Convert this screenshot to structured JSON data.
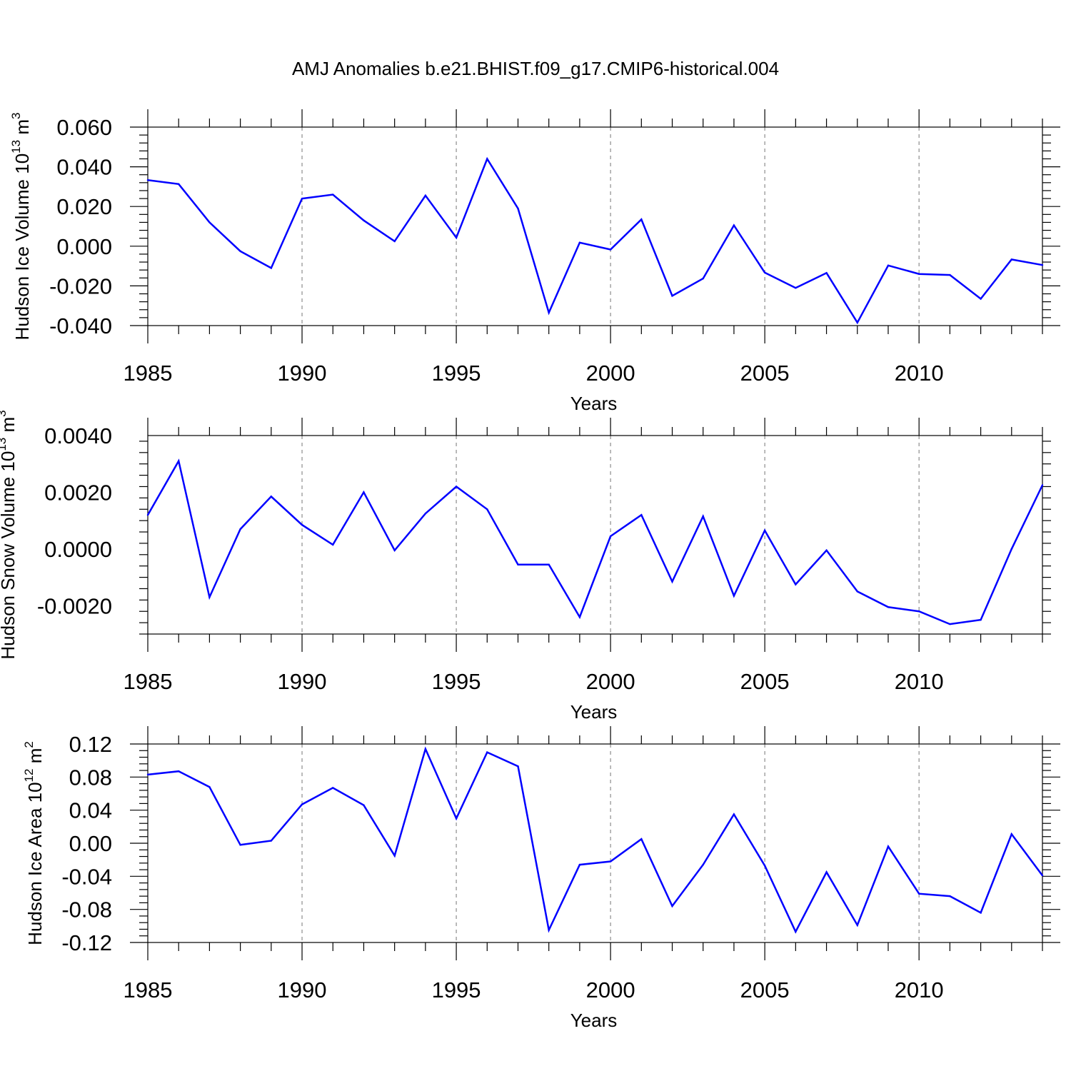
{
  "figure": {
    "title": "AMJ Anomalies b.e21.BHIST.f09_g17.CMIP6-historical.004"
  },
  "colors": {
    "series_line": "#0000ff",
    "axis": "#000000",
    "gridline": "#8c8c8c",
    "background": "#ffffff"
  },
  "chart_data": [
    {
      "type": "line",
      "ylabel": "Hudson Ice Volume 10",
      "ylabel_exponent": "13",
      "ylabel_unit": " m",
      "ylabel_unit_exponent": "3",
      "xlabel": "Years",
      "xlim": [
        1985,
        2014
      ],
      "ylim": [
        -0.04,
        0.06
      ],
      "x_ticks": [
        1985,
        1990,
        1995,
        2000,
        2005,
        2010
      ],
      "x_tick_labels": [
        "1985",
        "1990",
        "1995",
        "2000",
        "2005",
        "2010"
      ],
      "y_ticks": [
        -0.04,
        -0.02,
        0.0,
        0.02,
        0.04,
        0.06
      ],
      "y_tick_labels": [
        "-0.040",
        "-0.020",
        "0.000",
        "0.020",
        "0.040",
        "0.060"
      ],
      "grid": "vertical dashed at major x ticks",
      "x": [
        1985,
        1986,
        1987,
        1988,
        1989,
        1990,
        1991,
        1992,
        1993,
        1994,
        1995,
        1996,
        1997,
        1998,
        1999,
        2000,
        2001,
        2002,
        2003,
        2004,
        2005,
        2006,
        2007,
        2008,
        2009,
        2010,
        2011,
        2012,
        2013,
        2014
      ],
      "values": [
        0.0333,
        0.0313,
        0.012,
        -0.0025,
        -0.011,
        0.024,
        0.026,
        0.013,
        0.0025,
        0.0255,
        0.0043,
        0.044,
        0.019,
        -0.0335,
        0.0018,
        -0.0017,
        0.0135,
        -0.025,
        -0.0163,
        0.0105,
        -0.0133,
        -0.021,
        -0.0135,
        -0.0385,
        -0.0097,
        -0.014,
        -0.0145,
        -0.0265,
        -0.0067,
        -0.0095
      ]
    },
    {
      "type": "line",
      "ylabel": "Hudson Snow Volume 10",
      "ylabel_exponent": "13",
      "ylabel_unit": " m",
      "ylabel_unit_exponent": "3",
      "xlabel": "Years",
      "xlim": [
        1985,
        2014
      ],
      "ylim": [
        -0.003,
        0.004
      ],
      "x_ticks": [
        1985,
        1990,
        1995,
        2000,
        2005,
        2010
      ],
      "x_tick_labels": [
        "1985",
        "1990",
        "1995",
        "2000",
        "2005",
        "2010"
      ],
      "y_ticks": [
        -0.002,
        0.0,
        0.002,
        0.004
      ],
      "y_tick_labels": [
        "-0.0020",
        "0.0000",
        "0.0020",
        "0.0040"
      ],
      "grid": "vertical dashed at major x ticks",
      "x": [
        1985,
        1986,
        1987,
        1988,
        1989,
        1990,
        1991,
        1992,
        1993,
        1994,
        1995,
        1996,
        1997,
        1998,
        1999,
        2000,
        2001,
        2002,
        2003,
        2004,
        2005,
        2006,
        2007,
        2008,
        2009,
        2010,
        2011,
        2012,
        2013,
        2014
      ],
      "values": [
        0.0012,
        0.0031,
        -0.0017,
        0.0007,
        0.00185,
        0.00085,
        0.00015,
        0.002,
        -5e-05,
        0.00125,
        0.0022,
        0.0014,
        -0.00055,
        -0.00055,
        -0.0024,
        0.00045,
        0.0012,
        -0.00115,
        0.00115,
        -0.00165,
        0.00065,
        -0.00125,
        -5e-05,
        -0.0015,
        -0.00205,
        -0.0022,
        -0.00265,
        -0.0025,
        0.0,
        0.00225
      ]
    },
    {
      "type": "line",
      "ylabel": "Hudson Ice Area 10",
      "ylabel_exponent": "12",
      "ylabel_unit": " m",
      "ylabel_unit_exponent": "2",
      "xlabel": "Years",
      "xlim": [
        1985,
        2014
      ],
      "ylim": [
        -0.12,
        0.12
      ],
      "x_ticks": [
        1985,
        1990,
        1995,
        2000,
        2005,
        2010
      ],
      "x_tick_labels": [
        "1985",
        "1990",
        "1995",
        "2000",
        "2005",
        "2010"
      ],
      "y_ticks": [
        -0.12,
        -0.08,
        -0.04,
        0.0,
        0.04,
        0.08,
        0.12
      ],
      "y_tick_labels": [
        "-0.12",
        "-0.08",
        "-0.04",
        "0.00",
        "0.04",
        "0.08",
        "0.12"
      ],
      "grid": "vertical dashed at major x ticks",
      "x": [
        1985,
        1986,
        1987,
        1988,
        1989,
        1990,
        1991,
        1992,
        1993,
        1994,
        1995,
        1996,
        1997,
        1998,
        1999,
        2000,
        2001,
        2002,
        2003,
        2004,
        2005,
        2006,
        2007,
        2008,
        2009,
        2010,
        2011,
        2012,
        2013,
        2014
      ],
      "values": [
        0.083,
        0.087,
        0.068,
        -0.002,
        0.003,
        0.047,
        0.067,
        0.046,
        -0.015,
        0.114,
        0.03,
        0.11,
        0.093,
        -0.105,
        -0.026,
        -0.022,
        0.005,
        -0.076,
        -0.026,
        0.035,
        -0.027,
        -0.107,
        -0.035,
        -0.099,
        -0.004,
        -0.061,
        -0.064,
        -0.084,
        0.011,
        -0.039
      ]
    }
  ]
}
